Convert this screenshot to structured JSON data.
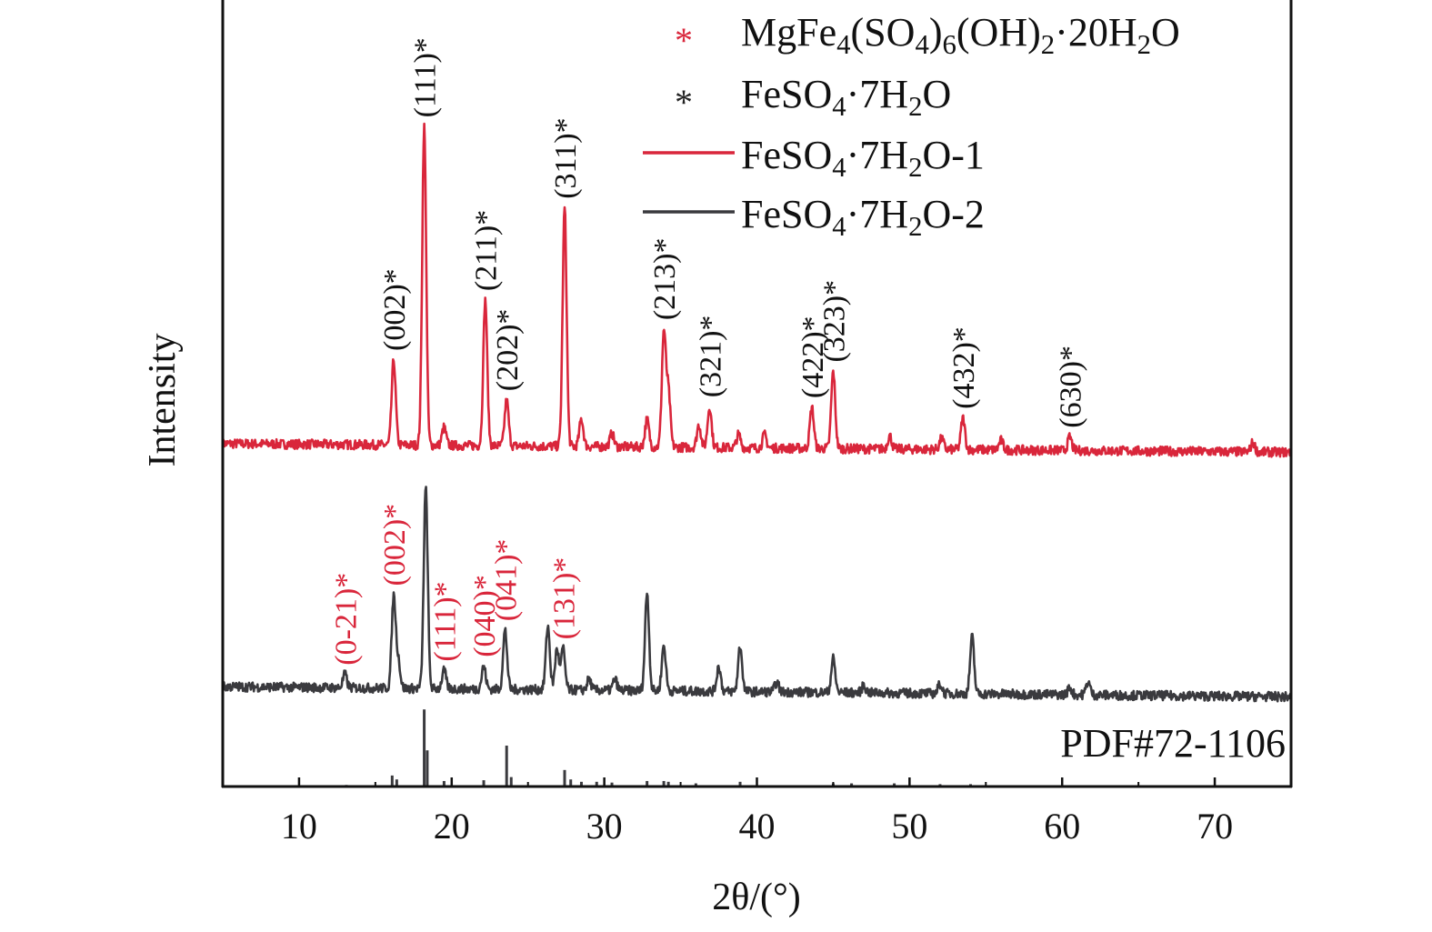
{
  "chart_data": {
    "type": "line",
    "title": "",
    "xlabel": "2θ/(°)",
    "ylabel": "Intensity",
    "xlim": [
      5,
      75
    ],
    "ylim": [
      0,
      1000
    ],
    "x_ticks": [
      "10",
      "20",
      "30",
      "40",
      "50",
      "60",
      "70"
    ],
    "grid": false,
    "legend_position": "top-right",
    "colors": {
      "red": "#d9263b",
      "dark": "#3a3a3e",
      "axis": "#111111"
    },
    "legend": [
      {
        "marker": "asterisk",
        "color": "#d9263b",
        "label": "MgFe4(SO4)6(OH)2·20H2O"
      },
      {
        "marker": "asterisk",
        "color": "#222222",
        "label": "FeSO4·7H2O"
      },
      {
        "marker": "line",
        "color": "#d9263b",
        "label": "FeSO4·7H2O-1"
      },
      {
        "marker": "line",
        "color": "#3a3a3e",
        "label": "FeSO4·7H2O-2"
      }
    ],
    "series": [
      {
        "name": "FeSO4·7H2O-1",
        "color": "#d9263b",
        "baseline": [
          436,
          425
        ],
        "peaks": [
          [
            16.2,
            108
          ],
          [
            18.2,
            405
          ],
          [
            19.5,
            23
          ],
          [
            22.2,
            185
          ],
          [
            23.6,
            58
          ],
          [
            27.4,
            303
          ],
          [
            28.5,
            35
          ],
          [
            30.5,
            17
          ],
          [
            32.8,
            35
          ],
          [
            33.9,
            145
          ],
          [
            34.2,
            70
          ],
          [
            36.2,
            29
          ],
          [
            36.9,
            52
          ],
          [
            38.8,
            17
          ],
          [
            40.5,
            17
          ],
          [
            43.6,
            52
          ],
          [
            45.0,
            98
          ],
          [
            48.7,
            17
          ],
          [
            52.1,
            14
          ],
          [
            53.5,
            40
          ],
          [
            56.0,
            12
          ],
          [
            60.5,
            17
          ],
          [
            72.5,
            12
          ]
        ],
        "annotations": [
          {
            "x": 16.2,
            "text": "(002)*"
          },
          {
            "x": 18.2,
            "text": "(111)*"
          },
          {
            "x": 22.2,
            "text": "(211)*"
          },
          {
            "x": 23.6,
            "text": "(202)*"
          },
          {
            "x": 27.4,
            "text": "(311)*"
          },
          {
            "x": 33.9,
            "text": "(213)*"
          },
          {
            "x": 36.9,
            "text": "(321)*"
          },
          {
            "x": 43.6,
            "text": "(422)*"
          },
          {
            "x": 45.0,
            "text": "(323)*"
          },
          {
            "x": 53.5,
            "text": "(432)*"
          },
          {
            "x": 60.5,
            "text": "(630)*"
          }
        ],
        "annotation_color": "#111111"
      },
      {
        "name": "FeSO4·7H2O-2",
        "color": "#3a3a3e",
        "baseline": [
          127,
          114
        ],
        "peaks": [
          [
            13.0,
            17
          ],
          [
            16.2,
            116
          ],
          [
            16.5,
            35
          ],
          [
            18.3,
            254
          ],
          [
            19.5,
            23
          ],
          [
            22.1,
            29
          ],
          [
            23.5,
            75
          ],
          [
            26.3,
            81
          ],
          [
            26.9,
            52
          ],
          [
            27.3,
            52
          ],
          [
            29.0,
            14
          ],
          [
            30.7,
            14
          ],
          [
            32.8,
            125
          ],
          [
            33.9,
            58
          ],
          [
            37.5,
            32
          ],
          [
            38.9,
            58
          ],
          [
            41.3,
            12
          ],
          [
            45.0,
            43
          ],
          [
            47.0,
            9
          ],
          [
            52.0,
            12
          ],
          [
            54.1,
            72
          ],
          [
            60.5,
            9
          ],
          [
            61.7,
            17
          ]
        ],
        "annotations": [
          {
            "x": 13.0,
            "text": "(0-21)*"
          },
          {
            "x": 16.2,
            "text": "(002)*"
          },
          {
            "x": 19.5,
            "text": "(111)*"
          },
          {
            "x": 22.1,
            "text": "(040)*"
          },
          {
            "x": 23.5,
            "text": "(041)*"
          },
          {
            "x": 27.3,
            "text": "(131)*"
          }
        ],
        "annotation_color": "#d9263b"
      }
    ],
    "reference": {
      "label": "PDF#72-1106",
      "color": "#3a3a3e",
      "sticks": [
        [
          13.1,
          2
        ],
        [
          16.1,
          14
        ],
        [
          16.4,
          9
        ],
        [
          18.2,
          98
        ],
        [
          18.4,
          46
        ],
        [
          19.5,
          7
        ],
        [
          22.1,
          8
        ],
        [
          23.6,
          52
        ],
        [
          23.9,
          12
        ],
        [
          27.4,
          21
        ],
        [
          27.8,
          9
        ],
        [
          28.5,
          6
        ],
        [
          29.5,
          6
        ],
        [
          30.5,
          5
        ],
        [
          32.8,
          7
        ],
        [
          33.9,
          7
        ],
        [
          34.2,
          6
        ],
        [
          36.0,
          4
        ],
        [
          38.9,
          6
        ],
        [
          45.0,
          4
        ],
        [
          46.2,
          4
        ],
        [
          49.0,
          4
        ],
        [
          52.0,
          3
        ],
        [
          54.0,
          3
        ]
      ]
    }
  }
}
